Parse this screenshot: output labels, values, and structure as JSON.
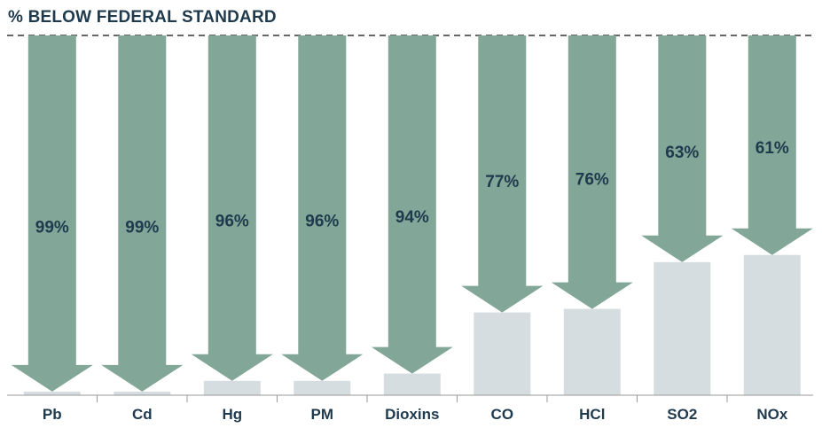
{
  "chart_data": {
    "type": "bar",
    "title": "% BELOW FEDERAL STANDARD",
    "categories": [
      "Pb",
      "Cd",
      "Hg",
      "PM",
      "Dioxins",
      "CO",
      "HCl",
      "SO2",
      "NOx"
    ],
    "values": [
      99,
      99,
      96,
      96,
      94,
      77,
      76,
      63,
      61
    ],
    "value_labels": [
      "99%",
      "99%",
      "96%",
      "96%",
      "94%",
      "77%",
      "76%",
      "63%",
      "61%"
    ],
    "ylim": [
      0,
      100
    ],
    "reference_line": 100,
    "grid": false,
    "legend": "none",
    "colors": {
      "arrow": "#82a698",
      "remainder_bar": "#d6dde0",
      "label_text": "#1f3a4d",
      "reference_line": "#666666",
      "axis": "#999999"
    }
  }
}
